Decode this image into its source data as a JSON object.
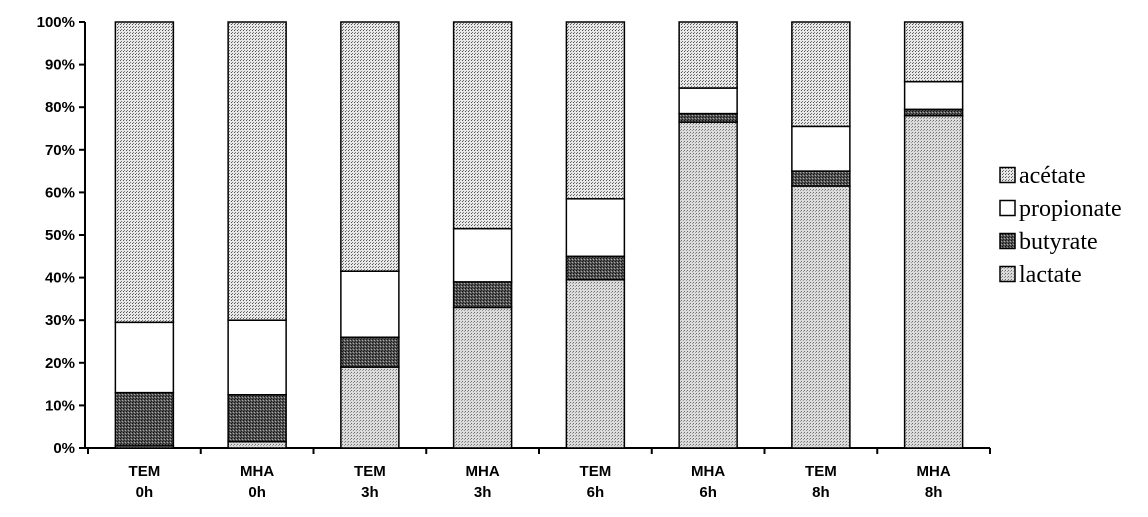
{
  "chart_data": {
    "type": "bar",
    "stacked": true,
    "normalized_percent": true,
    "categories": [
      [
        "TEM",
        "0h"
      ],
      [
        "MHA",
        "0h"
      ],
      [
        "TEM",
        "3h"
      ],
      [
        "MHA",
        "3h"
      ],
      [
        "TEM",
        "6h"
      ],
      [
        "MHA",
        "6h"
      ],
      [
        "TEM",
        "8h"
      ],
      [
        "MHA",
        "8h"
      ]
    ],
    "series": [
      {
        "name": "lactate",
        "values": [
          0.5,
          1.5,
          19,
          33,
          39.5,
          76.5,
          61.5,
          78
        ],
        "pattern": "light-dots"
      },
      {
        "name": "butyrate",
        "values": [
          12.5,
          11,
          7,
          6,
          5.5,
          2,
          3.5,
          1.5
        ],
        "pattern": "dark-dots"
      },
      {
        "name": "propionate",
        "values": [
          16.5,
          17.5,
          15.5,
          12.5,
          13.5,
          6,
          10.5,
          6.5
        ],
        "pattern": "white"
      },
      {
        "name": "acétate",
        "values": [
          70.5,
          70,
          58.5,
          48.5,
          41.5,
          15.5,
          24.5,
          14
        ],
        "pattern": "medium-dots"
      }
    ],
    "legend_order": [
      "acétate",
      "propionate",
      "butyrate",
      "lactate"
    ],
    "legend_position": "right",
    "ylim": [
      0,
      100
    ],
    "yticks": [
      "0%",
      "10%",
      "20%",
      "30%",
      "40%",
      "50%",
      "60%",
      "70%",
      "80%",
      "90%",
      "100%"
    ],
    "grid": false,
    "title": "",
    "xlabel": "",
    "ylabel": ""
  }
}
